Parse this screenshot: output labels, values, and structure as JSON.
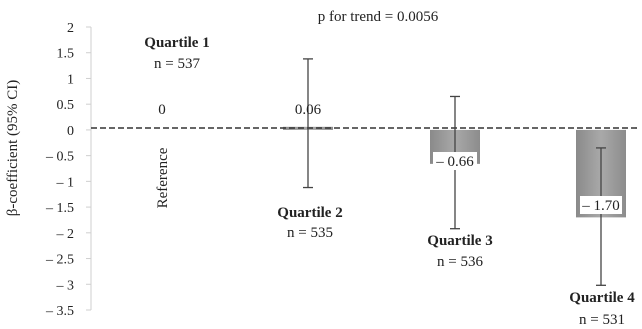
{
  "chart_data": {
    "type": "bar",
    "ylabel": "β-coefficient  (95% CI)",
    "annotation": "p for trend = 0.0056",
    "ylim": [
      -3.5,
      2
    ],
    "yticks": [
      "2",
      "1.5",
      "1",
      "0.5",
      "0",
      "– 0.5",
      "– 1",
      "– 1.5",
      "– 2",
      "– 2.5",
      "– 3",
      "– 3.5"
    ],
    "ytick_values": [
      2,
      1.5,
      1,
      0.5,
      0,
      -0.5,
      -1,
      -1.5,
      -2,
      -2.5,
      -3,
      -3.5
    ],
    "categories": [
      "Quartile 1",
      "Quartile 2",
      "Quartile 3",
      "Quartile 4"
    ],
    "n_labels": [
      "n = 537",
      "n = 535",
      "n = 536",
      "n = 531"
    ],
    "values": [
      0,
      0.06,
      -0.66,
      -1.7
    ],
    "value_labels": [
      "0",
      "0.06",
      "– 0.66",
      "– 1.70"
    ],
    "ci_lower": [
      null,
      -1.12,
      -1.92,
      -3.02
    ],
    "ci_upper": [
      null,
      1.38,
      0.65,
      -0.35
    ],
    "reference_label": "Reference",
    "reference_line": 0
  }
}
